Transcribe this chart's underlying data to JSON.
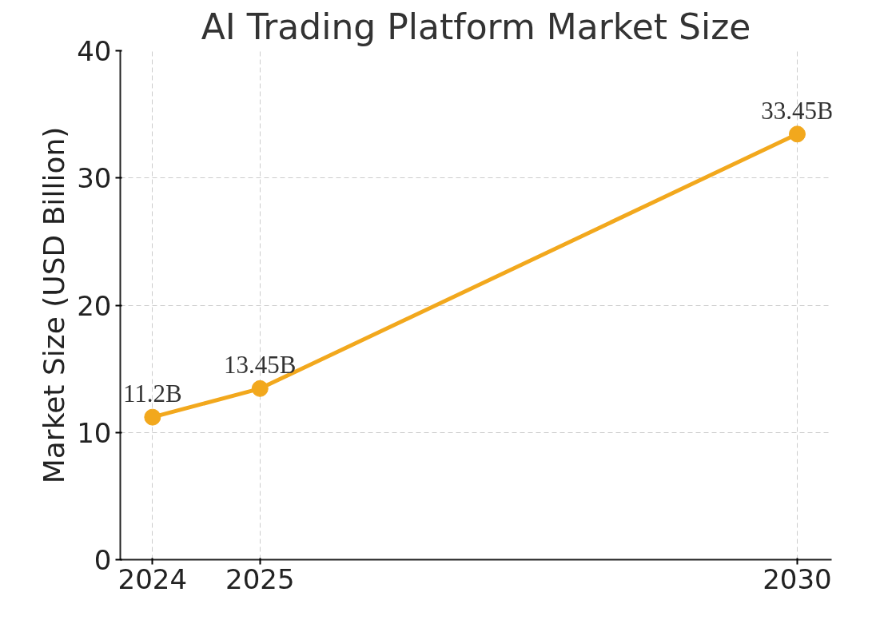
{
  "chart_data": {
    "type": "line",
    "title": "AI Trading Platform Market Size",
    "ylabel": "Market Size (USD Billion)",
    "x": [
      2024,
      2025,
      2030
    ],
    "series": [
      {
        "color": "#f2a81d",
        "values": [
          11.2,
          13.45,
          33.45
        ],
        "value_labels": [
          "11.2B",
          "13.45B",
          "33.45B"
        ]
      }
    ],
    "xlim": [
      2023.7,
      2030.32
    ],
    "xticks": [
      2024,
      2025,
      2030
    ],
    "ylim": [
      0,
      40
    ],
    "yticks": [
      0,
      10,
      20,
      30,
      40
    ],
    "grid": true,
    "marker": "circle",
    "line_style": "solid"
  }
}
